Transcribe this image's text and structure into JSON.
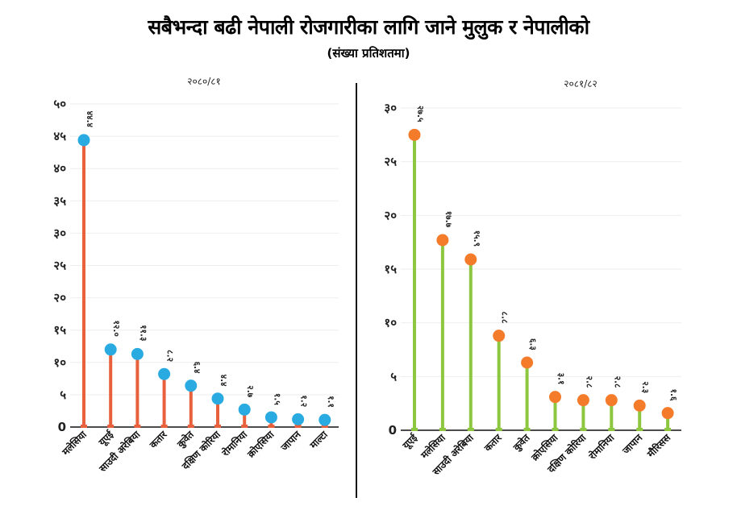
{
  "header": {
    "title": "सबैभन्दा बढी नेपाली रोजगारीका लागि जाने मुलुक र नेपालीको",
    "subtitle": "(संख्या प्रतिशतमा)"
  },
  "colors": {
    "left_stem": "#E8603C",
    "left_marker": "#29ABE2",
    "right_stem": "#8DC63F",
    "right_marker": "#F47B2A",
    "grid": "#eeeeee",
    "axis": "#111111"
  },
  "chart_data": [
    {
      "type": "lollipop",
      "title": "२०८०/८१",
      "xlabel": "",
      "ylabel": "",
      "ylim": [
        0,
        50
      ],
      "yticks": [
        0,
        5,
        10,
        15,
        20,
        25,
        30,
        35,
        40,
        45,
        50
      ],
      "ytick_labels": [
        "0",
        "५",
        "१०",
        "१५",
        "२०",
        "२५",
        "३०",
        "३५",
        "४०",
        "४५",
        "५०"
      ],
      "grid": true,
      "categories": [
        "मलेसिया",
        "यूएई",
        "साउदी अरेबिया",
        "कतार",
        "कुवेत",
        "दक्षिण कोरिया",
        "रोमानिया",
        "क्रोएसिया",
        "जापान",
        "माल्टा"
      ],
      "values": [
        44.4,
        12.0,
        11.3,
        8.2,
        6.4,
        4.4,
        2.7,
        1.5,
        1.2,
        1.1
      ],
      "value_labels": [
        "४४.४",
        "१२.०",
        "११.३",
        "८.२",
        "६.४",
        "४.४",
        "२.७",
        "१.५",
        "१.२",
        "१.१"
      ]
    },
    {
      "type": "lollipop",
      "title": "२०८१/८२",
      "xlabel": "",
      "ylabel": "",
      "ylim": [
        0,
        30
      ],
      "yticks": [
        0,
        5,
        10,
        15,
        20,
        25,
        30
      ],
      "ytick_labels": [
        "0",
        "५",
        "१०",
        "१५",
        "२०",
        "२५",
        "३०"
      ],
      "grid": true,
      "categories": [
        "यूएई",
        "मलेसिया",
        "साउदी अरेबिया",
        "कतार",
        "कुवेत",
        "क्रोएसिया",
        "दक्षिण कोरिया",
        "रोमानिया",
        "जापान",
        "मौरिसस"
      ],
      "values": [
        27.5,
        17.7,
        15.9,
        8.8,
        6.3,
        3.1,
        2.8,
        2.8,
        2.3,
        1.6
      ],
      "value_labels": [
        "२७.५",
        "१७.७",
        "१५.९",
        "८.८",
        "६.३",
        "३.१",
        "२.८",
        "२.८",
        "२.३",
        "१.६"
      ]
    }
  ]
}
